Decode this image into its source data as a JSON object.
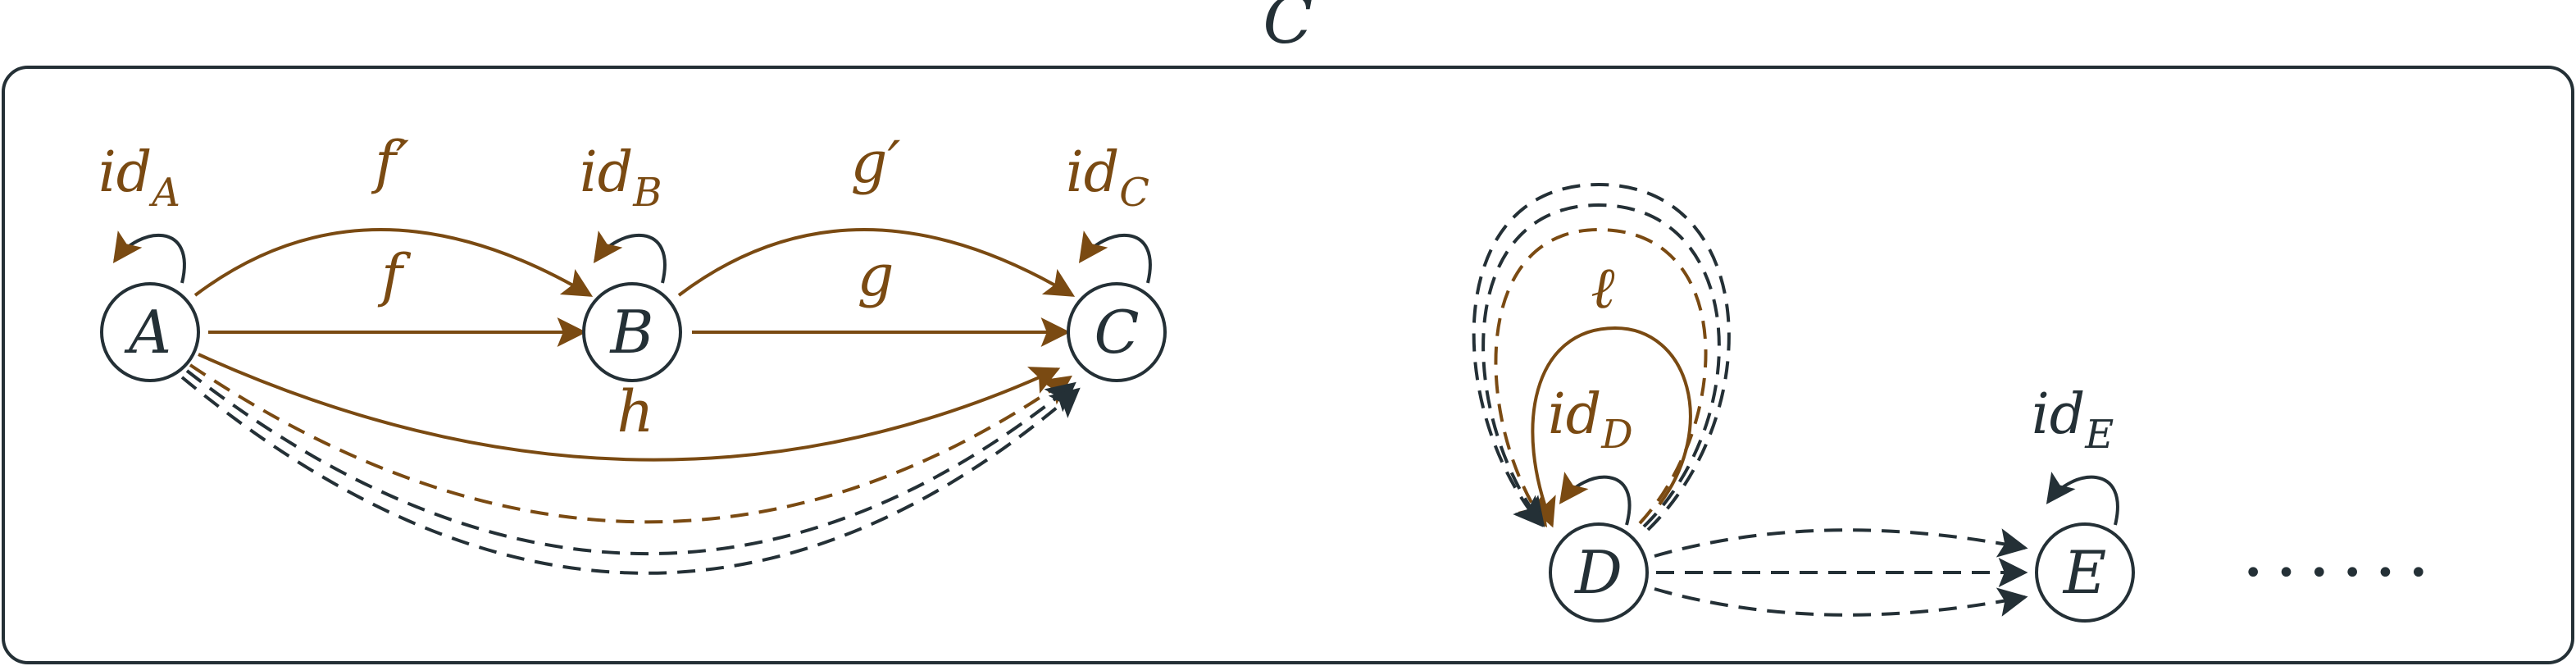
{
  "title": "C",
  "colors": {
    "brown": "#7a4a12",
    "dark": "#243036",
    "node_fill": "#ffffff"
  },
  "nodes": {
    "A": "A",
    "B": "B",
    "C": "C",
    "D": "D",
    "E": "E"
  },
  "identity_labels": {
    "A": {
      "base": "id",
      "sub": "A"
    },
    "B": {
      "base": "id",
      "sub": "B"
    },
    "C": {
      "base": "id",
      "sub": "C"
    },
    "D": {
      "base": "id",
      "sub": "D"
    },
    "E": {
      "base": "id",
      "sub": "E"
    }
  },
  "morphism_labels": {
    "f_prime": "f′",
    "f": "f",
    "g_prime": "g′",
    "g": "g",
    "h": "h",
    "ell": "ℓ"
  },
  "ellipsis": "• • • • • •"
}
